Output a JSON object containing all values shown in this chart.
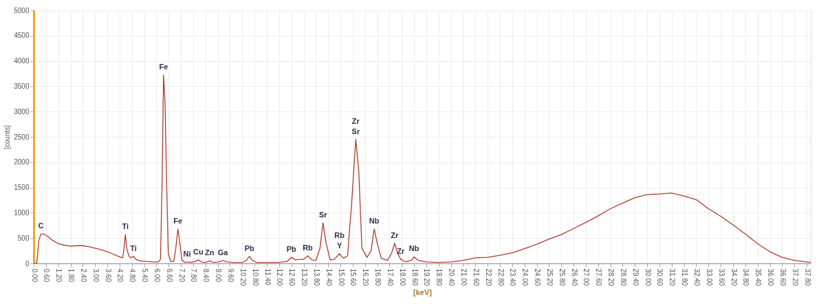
{
  "chart_data": {
    "type": "line",
    "xlabel": "[keV]",
    "ylabel": "[counts]",
    "xlim": [
      0,
      38.0
    ],
    "ylim": [
      0,
      5000
    ],
    "xticks": [
      {
        "value": 0,
        "label": "0.00"
      },
      {
        "value": 0.6,
        "label": "0.60"
      },
      {
        "value": 1.2,
        "label": "1.20"
      },
      {
        "value": 1.8,
        "label": "1.80"
      },
      {
        "value": 2.4,
        "label": "2.40"
      },
      {
        "value": 3.0,
        "label": "3.00"
      },
      {
        "value": 3.6,
        "label": "3.60"
      },
      {
        "value": 4.2,
        "label": "4.20"
      },
      {
        "value": 4.8,
        "label": "4.80"
      },
      {
        "value": 5.4,
        "label": "5.40"
      },
      {
        "value": 6.0,
        "label": "6.00"
      },
      {
        "value": 6.6,
        "label": "6.60"
      },
      {
        "value": 7.2,
        "label": "7.20"
      },
      {
        "value": 7.8,
        "label": "7.80"
      },
      {
        "value": 8.4,
        "label": "8.40"
      },
      {
        "value": 9.0,
        "label": "9.00"
      },
      {
        "value": 9.6,
        "label": "9.60"
      },
      {
        "value": 10.2,
        "label": "10.20"
      },
      {
        "value": 10.8,
        "label": "10.80"
      },
      {
        "value": 11.4,
        "label": "11.40"
      },
      {
        "value": 12.0,
        "label": "12.00"
      },
      {
        "value": 12.6,
        "label": "12.60"
      },
      {
        "value": 13.2,
        "label": "13.20"
      },
      {
        "value": 13.8,
        "label": "13.80"
      },
      {
        "value": 14.4,
        "label": "14.40"
      },
      {
        "value": 15.0,
        "label": "15.00"
      },
      {
        "value": 15.6,
        "label": "15.60"
      },
      {
        "value": 16.2,
        "label": "16.20"
      },
      {
        "value": 16.8,
        "label": "16.80"
      },
      {
        "value": 17.4,
        "label": "17.40"
      },
      {
        "value": 18.0,
        "label": "18.00"
      },
      {
        "value": 18.6,
        "label": "18.60"
      },
      {
        "value": 19.2,
        "label": "19.20"
      },
      {
        "value": 19.8,
        "label": "19.80"
      },
      {
        "value": 20.4,
        "label": "20.40"
      },
      {
        "value": 21.0,
        "label": "21.00"
      },
      {
        "value": 21.6,
        "label": "21.60"
      },
      {
        "value": 22.2,
        "label": "22.20"
      },
      {
        "value": 22.8,
        "label": "22.80"
      },
      {
        "value": 23.4,
        "label": "23.40"
      },
      {
        "value": 24.0,
        "label": "24.00"
      },
      {
        "value": 24.6,
        "label": "24.60"
      },
      {
        "value": 25.2,
        "label": "25.20"
      },
      {
        "value": 25.8,
        "label": "25.80"
      },
      {
        "value": 26.4,
        "label": "26.40"
      },
      {
        "value": 27.0,
        "label": "27.00"
      },
      {
        "value": 27.6,
        "label": "27.60"
      },
      {
        "value": 28.2,
        "label": "28.20"
      },
      {
        "value": 28.8,
        "label": "28.80"
      },
      {
        "value": 29.4,
        "label": "29.40"
      },
      {
        "value": 30.0,
        "label": "30.00"
      },
      {
        "value": 30.6,
        "label": "30.60"
      },
      {
        "value": 31.2,
        "label": "31.20"
      },
      {
        "value": 31.8,
        "label": "31.80"
      },
      {
        "value": 32.4,
        "label": "32.40"
      },
      {
        "value": 33.0,
        "label": "33.00"
      },
      {
        "value": 33.6,
        "label": "33.60"
      },
      {
        "value": 34.2,
        "label": "34.20"
      },
      {
        "value": 34.8,
        "label": "34.80"
      },
      {
        "value": 35.4,
        "label": "35.40"
      },
      {
        "value": 36.0,
        "label": "36.00"
      },
      {
        "value": 36.6,
        "label": "36.60"
      },
      {
        "value": 37.2,
        "label": "37.20"
      },
      {
        "value": 37.8,
        "label": "37.80"
      }
    ],
    "yticks": [
      0,
      500,
      1000,
      1500,
      2000,
      2500,
      3000,
      3500,
      4000,
      4500,
      5000
    ],
    "grid": true,
    "line_style": "solid",
    "series": [
      {
        "color": "#b03a2e",
        "x": [
          0.0,
          0.15,
          0.25,
          0.35,
          0.5,
          0.7,
          0.9,
          1.2,
          1.5,
          1.8,
          2.1,
          2.4,
          2.7,
          3.0,
          3.3,
          3.6,
          3.9,
          4.2,
          4.35,
          4.42,
          4.48,
          4.55,
          4.65,
          4.75,
          4.88,
          5.0,
          5.2,
          5.5,
          5.8,
          6.1,
          6.2,
          6.28,
          6.35,
          6.42,
          6.5,
          6.58,
          6.7,
          6.85,
          6.95,
          7.05,
          7.15,
          7.25,
          7.4,
          7.5,
          7.7,
          7.9,
          8.05,
          8.2,
          8.4,
          8.6,
          8.8,
          9.05,
          9.25,
          9.45,
          9.8,
          10.2,
          10.4,
          10.55,
          10.7,
          10.9,
          11.4,
          12.0,
          12.4,
          12.6,
          12.8,
          13.0,
          13.2,
          13.4,
          13.6,
          13.8,
          14.0,
          14.15,
          14.3,
          14.5,
          14.7,
          14.95,
          15.15,
          15.35,
          15.55,
          15.75,
          15.9,
          16.05,
          16.3,
          16.5,
          16.65,
          16.8,
          17.0,
          17.3,
          17.5,
          17.65,
          17.8,
          17.95,
          18.2,
          18.5,
          18.6,
          18.8,
          19.2,
          19.8,
          20.4,
          21.0,
          21.6,
          22.2,
          22.8,
          23.4,
          24.0,
          24.6,
          25.2,
          25.8,
          26.4,
          27.0,
          27.6,
          28.2,
          28.8,
          29.4,
          30.0,
          30.6,
          31.2,
          31.8,
          32.4,
          33.0,
          33.6,
          34.2,
          34.8,
          35.4,
          36.0,
          36.6,
          37.2,
          37.8,
          38.0
        ],
        "values": [
          0,
          0,
          450,
          580,
          580,
          530,
          460,
          390,
          360,
          340,
          350,
          350,
          330,
          300,
          270,
          230,
          180,
          130,
          110,
          300,
          570,
          300,
          150,
          110,
          140,
          80,
          50,
          40,
          30,
          30,
          80,
          1600,
          3720,
          3200,
          1600,
          200,
          40,
          40,
          300,
          680,
          400,
          60,
          20,
          30,
          20,
          40,
          70,
          30,
          20,
          50,
          20,
          30,
          60,
          30,
          20,
          20,
          60,
          140,
          60,
          20,
          20,
          20,
          40,
          120,
          70,
          80,
          80,
          150,
          70,
          60,
          300,
          800,
          400,
          70,
          80,
          190,
          100,
          150,
          1200,
          2450,
          1800,
          300,
          120,
          250,
          680,
          400,
          100,
          60,
          200,
          400,
          200,
          80,
          30,
          70,
          130,
          60,
          30,
          20,
          30,
          60,
          110,
          120,
          160,
          210,
          290,
          380,
          480,
          570,
          690,
          810,
          940,
          1080,
          1190,
          1300,
          1360,
          1370,
          1390,
          1330,
          1260,
          1080,
          930,
          760,
          580,
          390,
          230,
          120,
          60,
          30,
          20
        ]
      }
    ],
    "annotations": [
      {
        "text": "C",
        "x": 0.35,
        "y": 580
      },
      {
        "text": "Ti",
        "x": 4.48,
        "y": 570
      },
      {
        "text": "Ti",
        "x": 4.88,
        "y": 140
      },
      {
        "text": "Fe",
        "x": 6.35,
        "y": 3720
      },
      {
        "text": "Fe",
        "x": 7.05,
        "y": 680
      },
      {
        "text": "Ni",
        "x": 7.5,
        "y": 30
      },
      {
        "text": "Cu",
        "x": 8.05,
        "y": 70
      },
      {
        "text": "Zn",
        "x": 8.6,
        "y": 50
      },
      {
        "text": "Ga",
        "x": 9.25,
        "y": 60
      },
      {
        "text": "Pb",
        "x": 10.55,
        "y": 140
      },
      {
        "text": "Pb",
        "x": 12.6,
        "y": 120
      },
      {
        "text": "Rb",
        "x": 13.4,
        "y": 150
      },
      {
        "text": "Sr",
        "x": 14.15,
        "y": 800
      },
      {
        "text": "Rb",
        "x": 14.95,
        "y": 190
      },
      {
        "text": "Y",
        "x": 14.95,
        "y": 190
      },
      {
        "text": "Zr",
        "x": 15.75,
        "y": 2450
      },
      {
        "text": "Sr",
        "x": 15.75,
        "y": 2450
      },
      {
        "text": "Nb",
        "x": 16.65,
        "y": 680
      },
      {
        "text": "Zr",
        "x": 17.65,
        "y": 400
      },
      {
        "text": "Zr",
        "x": 17.95,
        "y": 80
      },
      {
        "text": "Nb",
        "x": 18.6,
        "y": 130
      }
    ]
  }
}
